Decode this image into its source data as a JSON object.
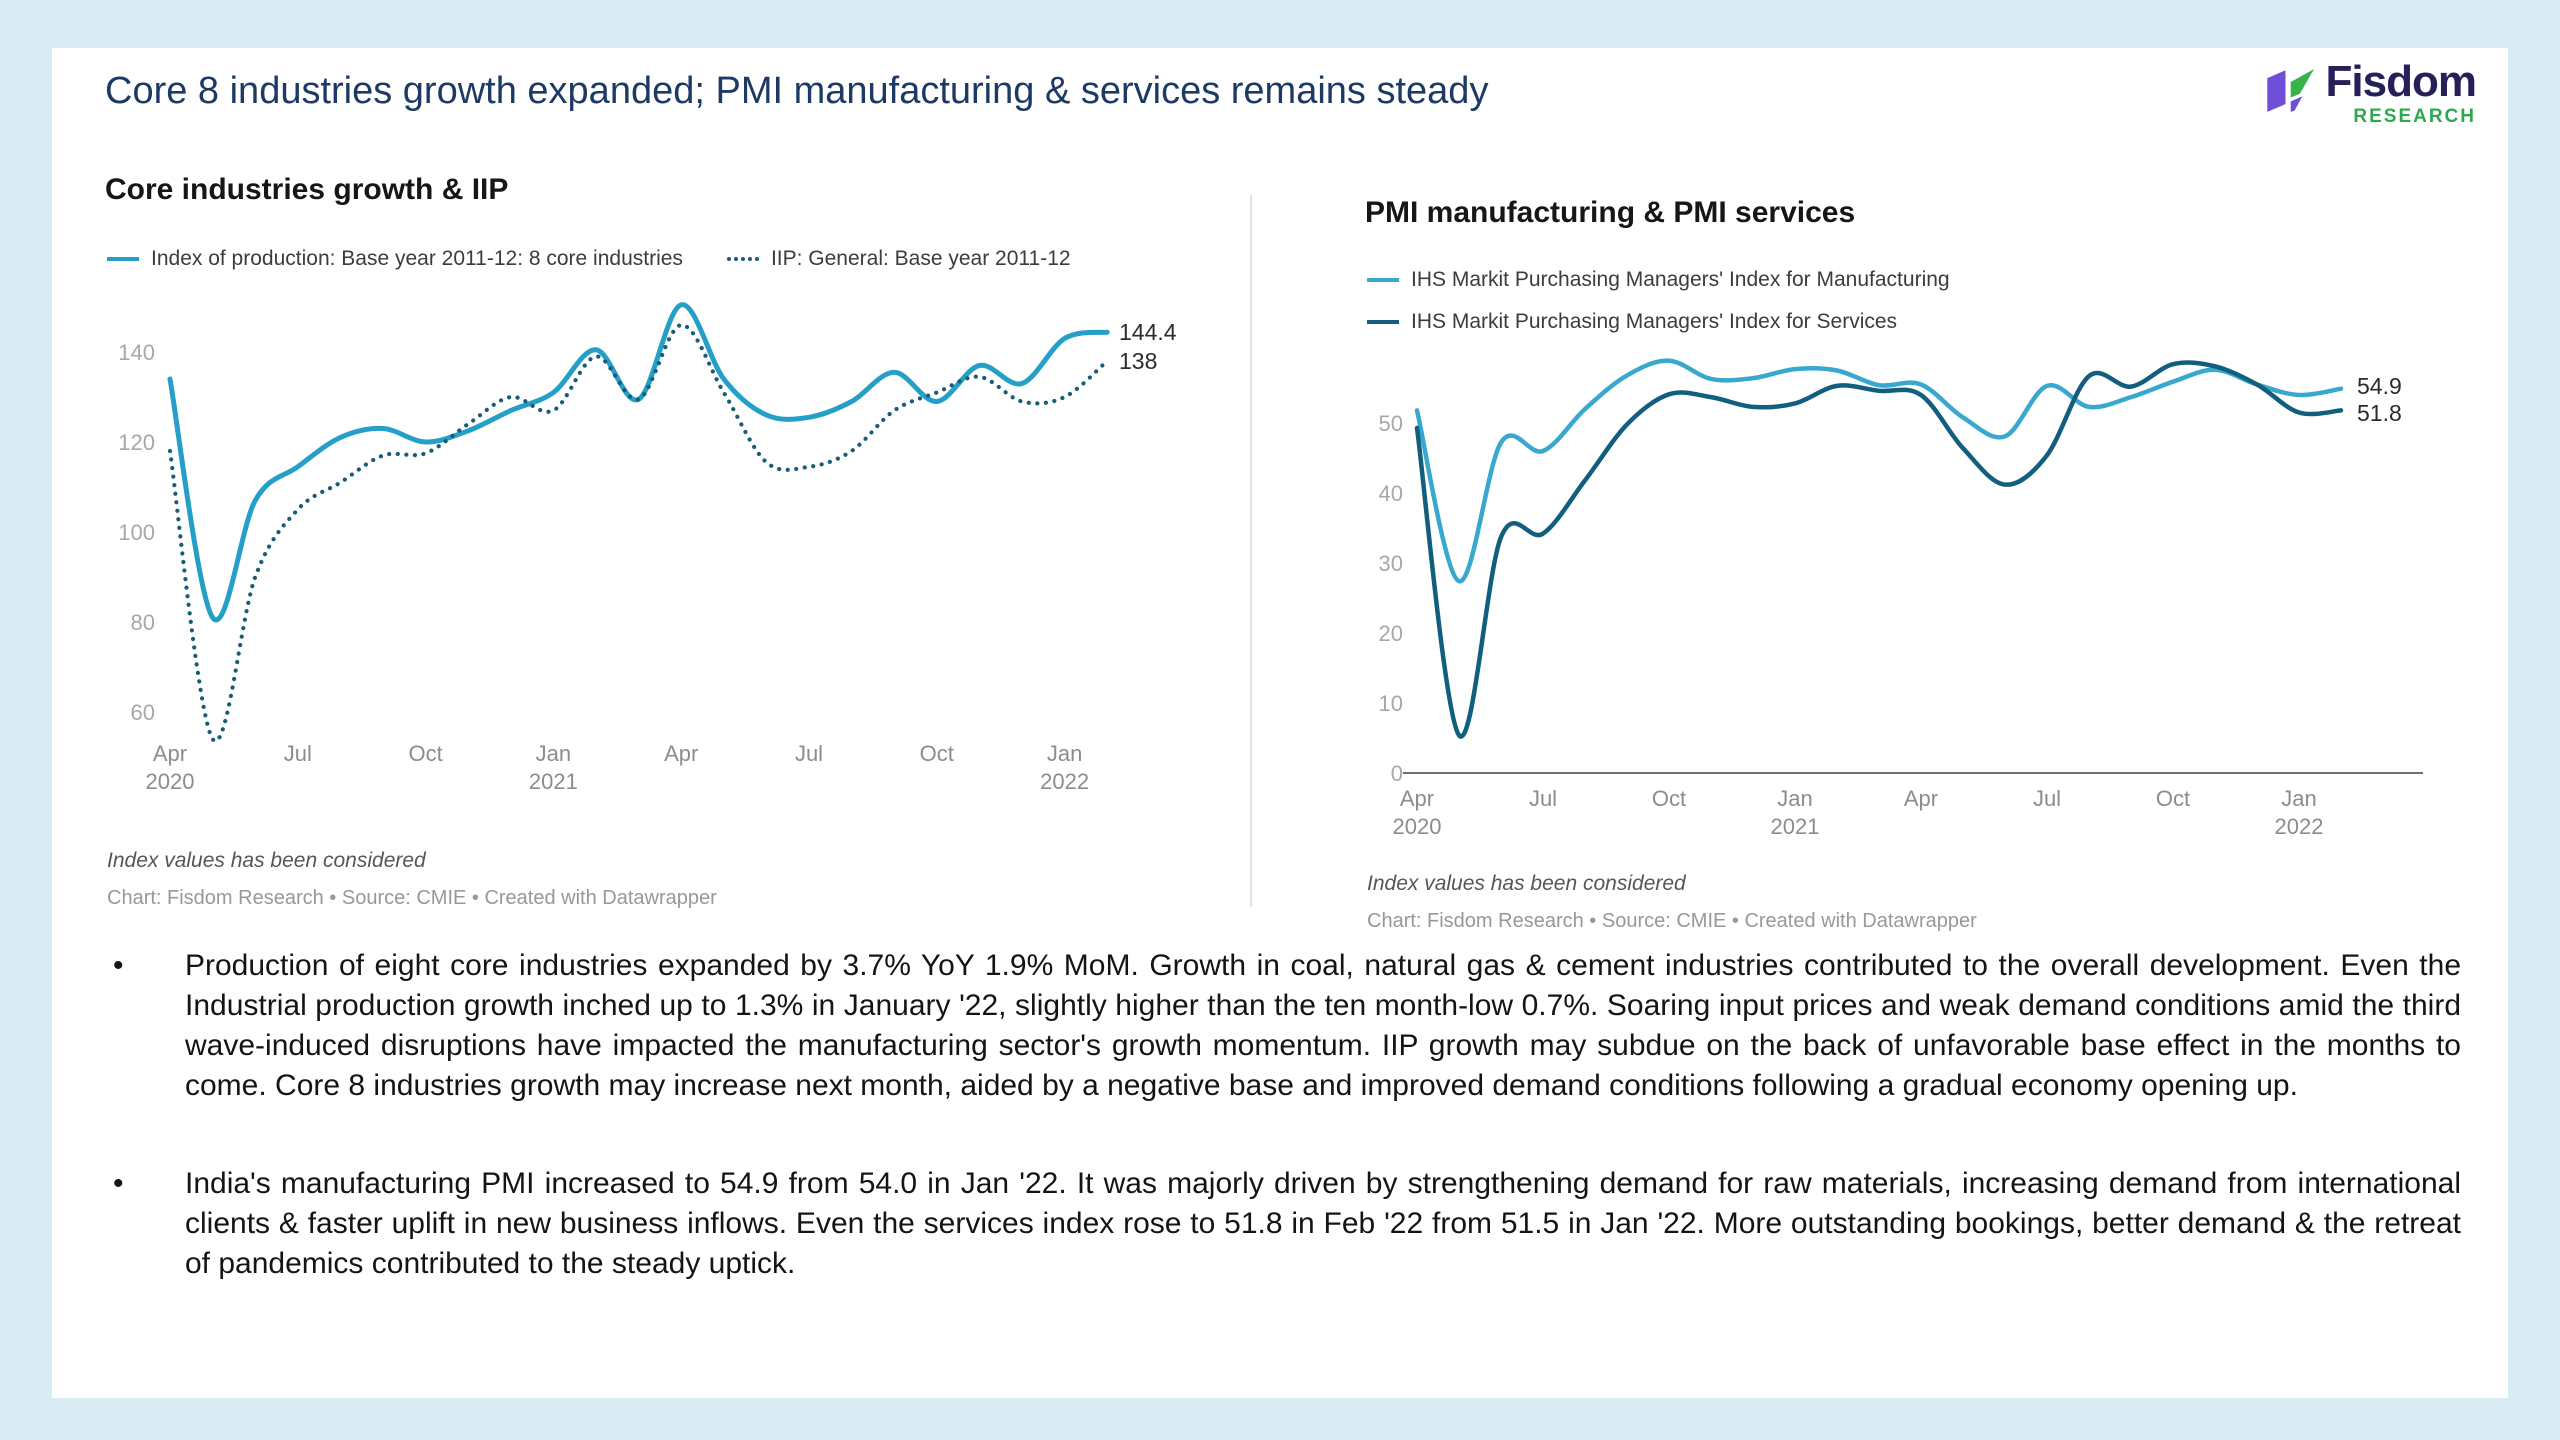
{
  "header": {
    "title": "Core 8 industries growth expanded; PMI manufacturing & services remains steady",
    "logo": {
      "brand": "Fisdom",
      "subtitle": "RESEARCH"
    }
  },
  "chart_data": [
    {
      "type": "line",
      "title": "Core industries growth & IIP",
      "x": [
        "Apr 2020",
        "May 2020",
        "Jun 2020",
        "Jul 2020",
        "Aug 2020",
        "Sep 2020",
        "Oct 2020",
        "Nov 2020",
        "Dec 2020",
        "Jan 2021",
        "Feb 2021",
        "Mar 2021",
        "Apr 2021",
        "May 2021",
        "Jun 2021",
        "Jul 2021",
        "Aug 2021",
        "Sep 2021",
        "Oct 2021",
        "Nov 2021",
        "Dec 2021",
        "Jan 2022",
        "Feb 2022"
      ],
      "x_ticks": [
        {
          "index": 0,
          "month": "Apr",
          "year": "2020"
        },
        {
          "index": 3,
          "month": "Jul"
        },
        {
          "index": 6,
          "month": "Oct"
        },
        {
          "index": 9,
          "month": "Jan",
          "year": "2021"
        },
        {
          "index": 12,
          "month": "Apr"
        },
        {
          "index": 15,
          "month": "Jul"
        },
        {
          "index": 18,
          "month": "Oct"
        },
        {
          "index": 21,
          "month": "Jan",
          "year": "2022"
        }
      ],
      "y_ticks": [
        60,
        80,
        100,
        120,
        140
      ],
      "ylim": [
        50,
        153
      ],
      "grid": false,
      "legend_position": "top",
      "baseline": false,
      "series": [
        {
          "name": "Index of production: Base year 2011-12: 8 core industries",
          "color": "#249fc7",
          "style": "solid",
          "end_label": "144.4",
          "values": [
            134,
            81,
            107,
            114.5,
            121,
            123,
            120,
            122.5,
            127,
            131,
            140.5,
            129.5,
            150.5,
            134,
            126,
            125.5,
            129,
            135.5,
            129,
            137,
            133,
            143,
            144.4
          ]
        },
        {
          "name": "IIP: General: Base year 2011-12",
          "color": "#175d78",
          "style": "dotted",
          "end_label": "138",
          "values": [
            118,
            54,
            90,
            105,
            111,
            117,
            117.5,
            124,
            130,
            127,
            139,
            129.5,
            146,
            131,
            115.5,
            114.5,
            118,
            127,
            131,
            134.5,
            129,
            130,
            138
          ]
        }
      ],
      "footnote": "Index values has been considered",
      "credit": "Chart: Fisdom Research • Source: CMIE • Created with Datawrapper"
    },
    {
      "type": "line",
      "title": "PMI manufacturing & PMI services",
      "x": [
        "Apr 2020",
        "May 2020",
        "Jun 2020",
        "Jul 2020",
        "Aug 2020",
        "Sep 2020",
        "Oct 2020",
        "Nov 2020",
        "Dec 2020",
        "Jan 2021",
        "Feb 2021",
        "Mar 2021",
        "Apr 2021",
        "May 2021",
        "Jun 2021",
        "Jul 2021",
        "Aug 2021",
        "Sep 2021",
        "Oct 2021",
        "Nov 2021",
        "Dec 2021",
        "Jan 2022",
        "Feb 2022"
      ],
      "x_ticks": [
        {
          "index": 0,
          "month": "Apr",
          "year": "2020"
        },
        {
          "index": 3,
          "month": "Jul"
        },
        {
          "index": 6,
          "month": "Oct"
        },
        {
          "index": 9,
          "month": "Jan",
          "year": "2021"
        },
        {
          "index": 12,
          "month": "Apr"
        },
        {
          "index": 15,
          "month": "Jul"
        },
        {
          "index": 18,
          "month": "Oct"
        },
        {
          "index": 21,
          "month": "Jan",
          "year": "2022"
        }
      ],
      "y_ticks": [
        0,
        10,
        20,
        30,
        40,
        50
      ],
      "ylim": [
        0,
        61
      ],
      "grid": false,
      "legend_position": "top",
      "baseline": true,
      "series": [
        {
          "name": "IHS Markit Purchasing Managers' Index for Manufacturing",
          "color": "#38a8ce",
          "style": "solid",
          "end_label": "54.9",
          "values": [
            51.8,
            27.4,
            47.2,
            46.0,
            52.0,
            56.8,
            58.9,
            56.3,
            56.4,
            57.7,
            57.5,
            55.4,
            55.5,
            50.8,
            48.1,
            55.3,
            52.3,
            53.7,
            55.9,
            57.6,
            55.5,
            54.0,
            54.9
          ]
        },
        {
          "name": "IHS Markit Purchasing Managers' Index for Services",
          "color": "#115e7e",
          "style": "solid",
          "end_label": "51.8",
          "values": [
            49.3,
            5.4,
            33.7,
            34.2,
            41.8,
            49.8,
            54.1,
            53.7,
            52.3,
            52.8,
            55.3,
            54.6,
            54.0,
            46.4,
            41.2,
            45.4,
            56.7,
            55.2,
            58.4,
            58.1,
            55.5,
            51.5,
            51.8
          ]
        }
      ],
      "footnote": "Index values has been considered",
      "credit": "Chart: Fisdom Research • Source: CMIE • Created with Datawrapper"
    }
  ],
  "bullets": {
    "marker": "•",
    "items": [
      {
        "text": "Production of eight core industries expanded by 3.7% YoY 1.9% MoM. Growth in coal, natural gas & cement industries contributed to the overall development. Even the Industrial production growth inched up to 1.3% in January '22, slightly higher than the ten month-low 0.7%. Soaring input prices and weak demand conditions amid the third wave-induced disruptions have impacted the manufacturing sector's growth momentum. IIP growth may subdue on the back of unfavorable base effect in the months to come. Core 8 industries growth may increase next month, aided by a negative base and improved demand conditions following a gradual economy opening up."
      },
      {
        "text": "India's manufacturing PMI increased to 54.9 from 54.0 in Jan '22. It was majorly driven by strengthening demand for raw materials, increasing demand from international clients & faster uplift in new business inflows. Even the services index rose to 51.8 in Feb '22 from 51.5 in Jan '22. More outstanding bookings, better demand & the retreat of pandemics contributed to the steady uptick."
      }
    ]
  },
  "colors": {
    "page_background": "#d9ecf3",
    "card_background": "#ffffff",
    "title": "#1c3a64",
    "accent_cyan": "#249fc7",
    "accent_navy": "#175d78",
    "logo_brand": "#262058",
    "logo_green": "#2fa84f"
  }
}
